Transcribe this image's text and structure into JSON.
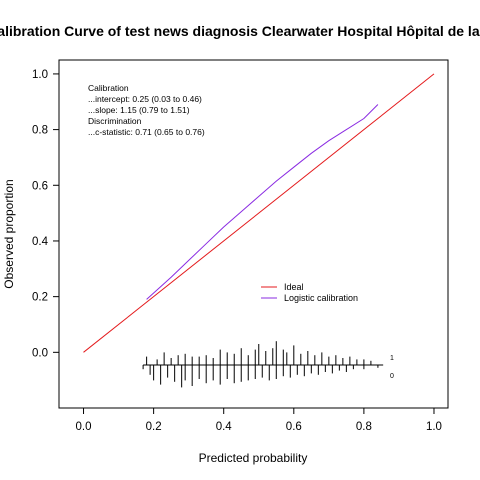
{
  "chart_data": {
    "type": "line",
    "title": "Calibration Curve of test news diagnosis Clearwater Hospital Hôpital de la S",
    "xlabel": "Predicted probability",
    "ylabel": "Observed proportion",
    "xlim": [
      -0.07,
      1.04
    ],
    "ylim": [
      -0.2,
      1.05
    ],
    "xticks": [
      0.0,
      0.2,
      0.4,
      0.6,
      0.8,
      1.0
    ],
    "yticks": [
      0.0,
      0.2,
      0.4,
      0.6,
      0.8,
      1.0
    ],
    "xtick_labels": [
      "0.0",
      "0.2",
      "0.4",
      "0.6",
      "0.8",
      "1.0"
    ],
    "ytick_labels": [
      "0.0",
      "0.2",
      "0.4",
      "0.6",
      "0.8",
      "1.0"
    ],
    "grid": false,
    "series": [
      {
        "name": "Ideal",
        "color": "#e41a1c",
        "x": [
          0.0,
          1.0
        ],
        "y": [
          0.0,
          1.0
        ]
      },
      {
        "name": "Logistic calibration",
        "color": "#8a2be2",
        "x": [
          0.18,
          0.25,
          0.3,
          0.35,
          0.4,
          0.45,
          0.5,
          0.55,
          0.6,
          0.65,
          0.7,
          0.75,
          0.8,
          0.84
        ],
        "y": [
          0.19,
          0.27,
          0.33,
          0.39,
          0.45,
          0.505,
          0.56,
          0.615,
          0.665,
          0.715,
          0.76,
          0.8,
          0.84,
          0.89
        ]
      }
    ],
    "legend": {
      "position": "bottom-right",
      "entries": [
        "Ideal",
        "Logistic calibration"
      ]
    },
    "annotation": {
      "lines": [
        "Calibration",
        "...intercept: 0.25 (0.03 to 0.46)",
        "...slope: 1.15 (0.79 to 1.51)",
        "Discrimination",
        "...c-statistic: 0.71 (0.65 to 0.76)"
      ]
    },
    "rug": {
      "labels": [
        "1",
        "0"
      ],
      "events": [
        {
          "x": 0.18,
          "h": 0.3
        },
        {
          "x": 0.21,
          "h": 0.2
        },
        {
          "x": 0.23,
          "h": 0.45
        },
        {
          "x": 0.25,
          "h": 0.25
        },
        {
          "x": 0.27,
          "h": 0.35
        },
        {
          "x": 0.29,
          "h": 0.4
        },
        {
          "x": 0.31,
          "h": 0.3
        },
        {
          "x": 0.33,
          "h": 0.3
        },
        {
          "x": 0.35,
          "h": 0.35
        },
        {
          "x": 0.37,
          "h": 0.25
        },
        {
          "x": 0.39,
          "h": 0.55
        },
        {
          "x": 0.41,
          "h": 0.45
        },
        {
          "x": 0.43,
          "h": 0.4
        },
        {
          "x": 0.45,
          "h": 0.6
        },
        {
          "x": 0.47,
          "h": 0.35
        },
        {
          "x": 0.49,
          "h": 0.55
        },
        {
          "x": 0.5,
          "h": 0.75
        },
        {
          "x": 0.52,
          "h": 0.5
        },
        {
          "x": 0.54,
          "h": 0.6
        },
        {
          "x": 0.55,
          "h": 0.85
        },
        {
          "x": 0.57,
          "h": 0.55
        },
        {
          "x": 0.58,
          "h": 0.45
        },
        {
          "x": 0.6,
          "h": 0.7
        },
        {
          "x": 0.62,
          "h": 0.4
        },
        {
          "x": 0.64,
          "h": 0.5
        },
        {
          "x": 0.66,
          "h": 0.35
        },
        {
          "x": 0.68,
          "h": 0.45
        },
        {
          "x": 0.7,
          "h": 0.3
        },
        {
          "x": 0.72,
          "h": 0.35
        },
        {
          "x": 0.74,
          "h": 0.25
        },
        {
          "x": 0.76,
          "h": 0.3
        },
        {
          "x": 0.78,
          "h": 0.2
        },
        {
          "x": 0.8,
          "h": 0.2
        },
        {
          "x": 0.82,
          "h": 0.15
        }
      ],
      "nonevents": [
        {
          "x": 0.17,
          "h": 0.15
        },
        {
          "x": 0.19,
          "h": 0.35
        },
        {
          "x": 0.2,
          "h": 0.55
        },
        {
          "x": 0.22,
          "h": 0.7
        },
        {
          "x": 0.24,
          "h": 0.45
        },
        {
          "x": 0.26,
          "h": 0.6
        },
        {
          "x": 0.28,
          "h": 0.8
        },
        {
          "x": 0.29,
          "h": 0.55
        },
        {
          "x": 0.31,
          "h": 0.75
        },
        {
          "x": 0.33,
          "h": 0.5
        },
        {
          "x": 0.35,
          "h": 0.65
        },
        {
          "x": 0.37,
          "h": 0.55
        },
        {
          "x": 0.39,
          "h": 0.7
        },
        {
          "x": 0.41,
          "h": 0.5
        },
        {
          "x": 0.43,
          "h": 0.65
        },
        {
          "x": 0.45,
          "h": 0.6
        },
        {
          "x": 0.47,
          "h": 0.55
        },
        {
          "x": 0.49,
          "h": 0.5
        },
        {
          "x": 0.51,
          "h": 0.45
        },
        {
          "x": 0.53,
          "h": 0.55
        },
        {
          "x": 0.55,
          "h": 0.5
        },
        {
          "x": 0.57,
          "h": 0.4
        },
        {
          "x": 0.59,
          "h": 0.45
        },
        {
          "x": 0.61,
          "h": 0.35
        },
        {
          "x": 0.63,
          "h": 0.4
        },
        {
          "x": 0.65,
          "h": 0.3
        },
        {
          "x": 0.67,
          "h": 0.35
        },
        {
          "x": 0.69,
          "h": 0.25
        },
        {
          "x": 0.71,
          "h": 0.3
        },
        {
          "x": 0.73,
          "h": 0.2
        },
        {
          "x": 0.75,
          "h": 0.25
        },
        {
          "x": 0.77,
          "h": 0.15
        },
        {
          "x": 0.8,
          "h": 0.15
        },
        {
          "x": 0.84,
          "h": 0.1
        }
      ]
    }
  }
}
